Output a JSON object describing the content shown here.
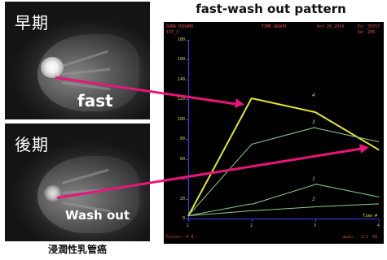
{
  "chart_title": "fast-wash out pattern",
  "early_panel": {
    "label": "早期"
  },
  "late_panel": {
    "label": "後期"
  },
  "arrow_labels": {
    "fast": "fast",
    "washout": "Wash out"
  },
  "caption": "浸潤性乳管癌",
  "graph": {
    "header_left1": "SONA HIRAMO",
    "header_left2": "137_3",
    "header_center": "TIME GRAPH",
    "header_date": "Oct 20 2014",
    "header_ex": "Ex: 35757",
    "header_se": "Se: 200",
    "footer_cursor": "Cursor: 4  4",
    "footer_right1": "auto",
    "footer_right2": "1:1",
    "footer_right3": "50",
    "time_unit": "Time #",
    "y_ticks": [
      "180",
      "160",
      "140",
      "120",
      "100",
      "80",
      "60",
      "40",
      "20",
      "0"
    ],
    "x_ticks": [
      "1",
      "2",
      "3",
      "4"
    ],
    "curve_labels": [
      "4",
      "3",
      "1",
      "2"
    ]
  },
  "chart_data": {
    "type": "line",
    "title": "fast-wash out pattern",
    "xlabel": "Time #",
    "ylabel": "",
    "ylim": [
      0,
      180
    ],
    "x": [
      1,
      2,
      3,
      4
    ],
    "series": [
      {
        "name": "4",
        "color": "#e6e62a",
        "values": [
          3,
          122,
          108,
          70
        ]
      },
      {
        "name": "3",
        "color": "#8ad08a",
        "values": [
          3,
          75,
          92,
          78
        ]
      },
      {
        "name": "1",
        "color": "#8ad08a",
        "values": [
          3,
          15,
          35,
          22
        ]
      },
      {
        "name": "2",
        "color": "#8ad08a",
        "values": [
          3,
          8,
          12,
          15
        ]
      }
    ]
  },
  "colors": {
    "arrow": "#e8157a",
    "mri_background": "#1a1a1a",
    "graph_background": "#000000",
    "axis": "#3b3bff"
  }
}
